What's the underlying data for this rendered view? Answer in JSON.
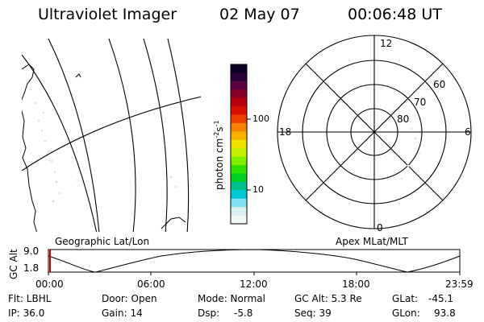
{
  "header": {
    "title": "Ultraviolet Imager",
    "date": "02 May 07",
    "time": "00:06:48 UT"
  },
  "colorbar": {
    "label": "photon cm",
    "label_sup1": "-2",
    "label_mid": "s",
    "label_sup2": "-1",
    "tick_100": "100",
    "tick_10": "10",
    "colors": [
      "#0a0025",
      "#2a003a",
      "#5a0040",
      "#8a0028",
      "#b80010",
      "#d81000",
      "#f04000",
      "#f88000",
      "#f8b000",
      "#f0e000",
      "#c0f000",
      "#80f000",
      "#30e000",
      "#00d020",
      "#00c090",
      "#00c8d8",
      "#80e0f0",
      "#d8f0f0",
      "#f0f8f8"
    ]
  },
  "left_map": {
    "caption": "Geographic Lat/Lon"
  },
  "polar_map": {
    "caption": "Apex MLat/MLT",
    "mlt_top": "12",
    "mlt_bottom": "0",
    "mlt_left": "18",
    "mlt_right": "6",
    "lat_60": "60",
    "lat_70": "70",
    "lat_80": "80"
  },
  "altitude_strip": {
    "axis_label": "GC Alt",
    "ytick_top": "9.0",
    "ytick_bottom": "1.8",
    "xticks": [
      "00:00",
      "06:00",
      "12:00",
      "18:00",
      "23:59"
    ]
  },
  "status": {
    "flt": "Flt: LBHL",
    "ip": "IP: 36.0",
    "door": "Door: Open",
    "gain": "Gain: 14",
    "mode": "Mode: Normal",
    "dsp_label": "Dsp:",
    "dsp_value": "-5.8",
    "gc_alt": "GC Alt: 5.3 Re",
    "seq": "Seq: 39",
    "glat_label": "GLat:",
    "glat_value": "-45.1",
    "glon_label": "GLon:",
    "glon_value": "93.8"
  }
}
